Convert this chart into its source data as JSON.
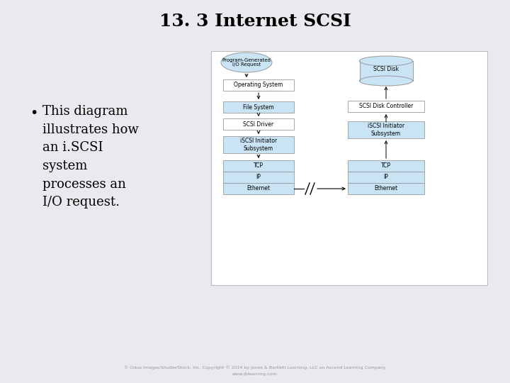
{
  "title": "13. 3 Internet SCSI",
  "bullet_lines": [
    "This diagram",
    "illustrates how",
    "an i.SCSI",
    "system",
    "processes an",
    "I/O request."
  ],
  "bg_color": "#e9e9ee",
  "diagram_bg": "#ffffff",
  "box_fill_white": "#ffffff",
  "box_fill_blue": "#c8e4f5",
  "box_border": "#999999",
  "title_fontsize": 18,
  "bullet_fontsize": 13,
  "footnote1": "© Odua Images/ShutterStock, Inc. Copyright © 2014 by Jones & Bartlett Learning, LLC an Ascend Learning Company",
  "footnote2": "www.jblearning.com",
  "ellipse_label": "Program-Generated\nI/O Request"
}
